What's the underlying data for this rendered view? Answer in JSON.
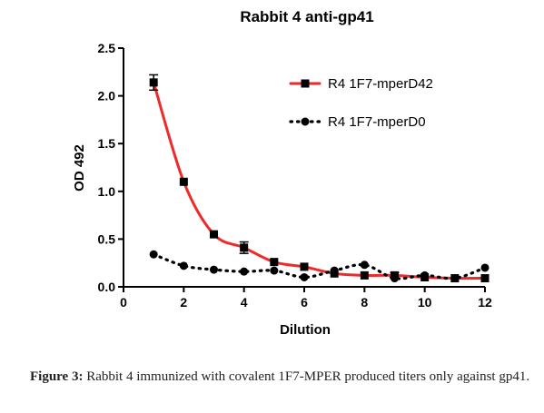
{
  "chart_data": {
    "type": "line",
    "title": "Rabbit 4 anti-gp41",
    "xlabel": "Dilution",
    "ylabel": "OD 492",
    "xlim": [
      0,
      12
    ],
    "ylim": [
      0,
      2.5
    ],
    "xticks": [
      0,
      2,
      4,
      6,
      8,
      10,
      12
    ],
    "yticks": [
      0.0,
      0.5,
      1.0,
      1.5,
      2.0,
      2.5
    ],
    "xtick_labels": [
      "0",
      "2",
      "4",
      "6",
      "8",
      "10",
      "12"
    ],
    "ytick_labels": [
      "0.0",
      "0.5",
      "1.0",
      "1.5",
      "2.0",
      "2.5"
    ],
    "grid": false,
    "legend_position": "top-right",
    "series": [
      {
        "name": "R4 1F7-mperD42",
        "color": "#ee2a2a",
        "marker": "square",
        "line": "solid",
        "x": [
          1,
          2,
          3,
          4,
          5,
          6,
          7,
          8,
          9,
          10,
          11,
          12
        ],
        "y": [
          2.14,
          1.1,
          0.55,
          0.41,
          0.26,
          0.21,
          0.14,
          0.12,
          0.12,
          0.1,
          0.09,
          0.09
        ],
        "error": [
          0.08,
          0,
          0,
          0.06,
          0,
          0,
          0,
          0,
          0.03,
          0,
          0,
          0
        ]
      },
      {
        "name": "R4 1F7-mperD0",
        "color": "#000000",
        "marker": "circle",
        "line": "dotted",
        "x": [
          1,
          2,
          3,
          4,
          5,
          6,
          7,
          8,
          9,
          10,
          11,
          12
        ],
        "y": [
          0.34,
          0.22,
          0.18,
          0.16,
          0.17,
          0.1,
          0.17,
          0.23,
          0.09,
          0.12,
          0.09,
          0.2
        ],
        "error": [
          0,
          0,
          0,
          0,
          0,
          0,
          0,
          0,
          0,
          0,
          0,
          0
        ]
      }
    ]
  },
  "caption": {
    "label": "Figure 3:",
    "text": "Rabbit 4 immunized with covalent 1F7-MPER produced titers only against gp41."
  }
}
